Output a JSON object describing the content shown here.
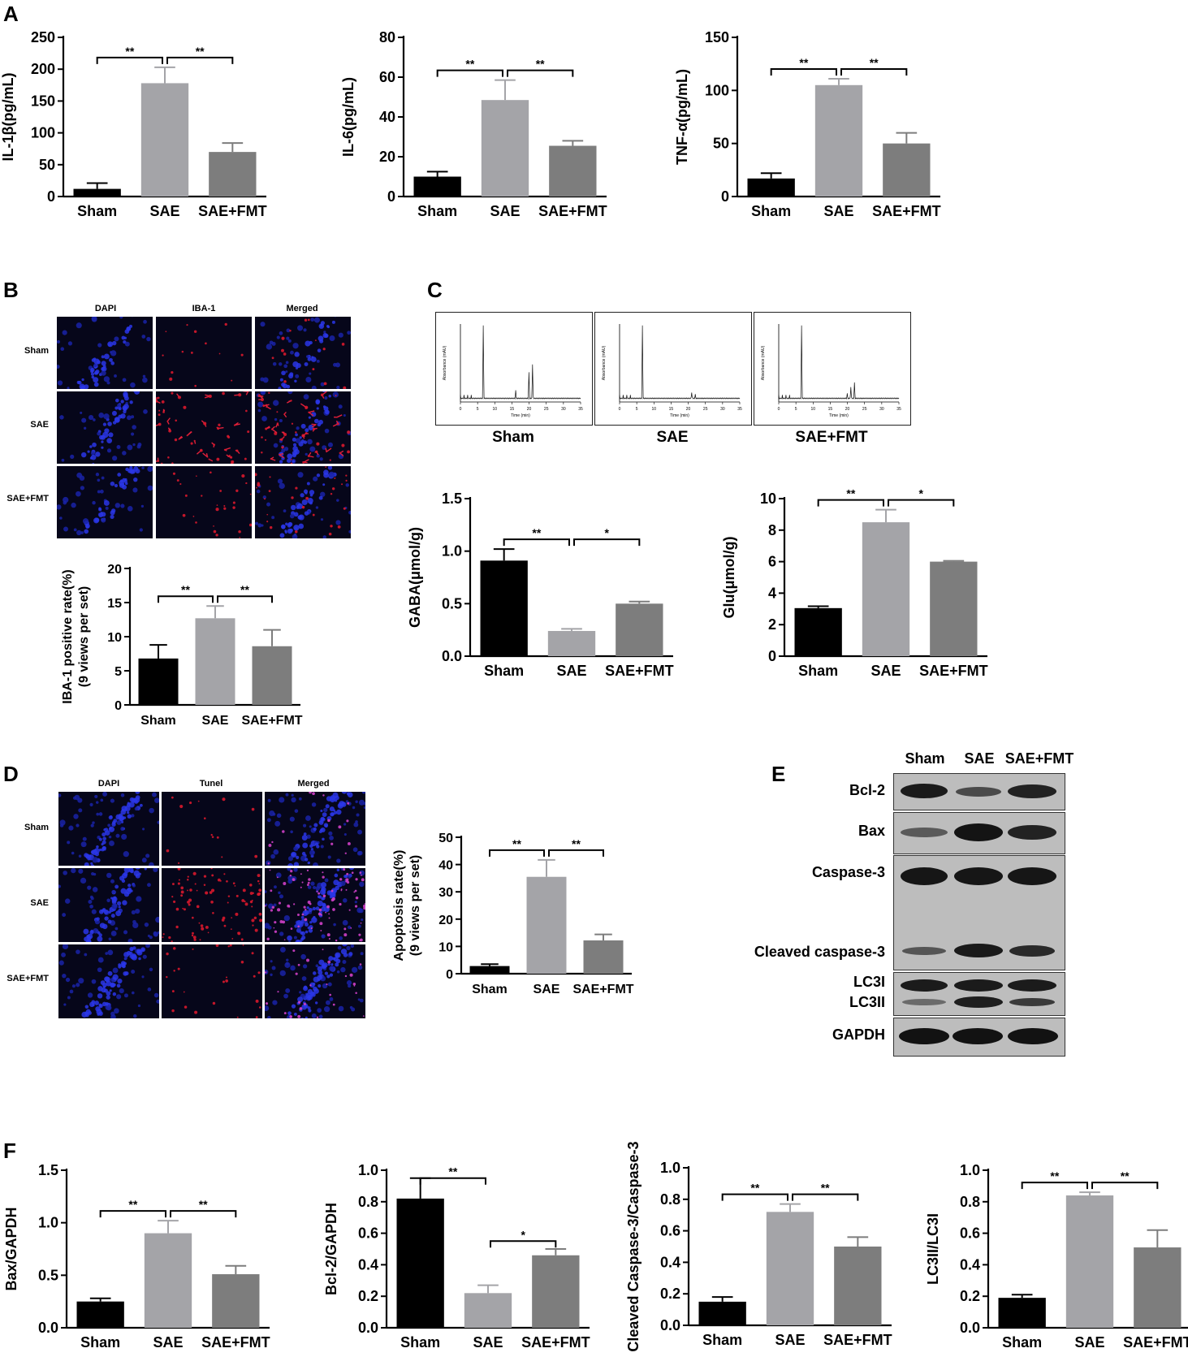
{
  "panels": {
    "A": "A",
    "B": "B",
    "C": "C",
    "D": "D",
    "E": "E",
    "F": "F"
  },
  "colors": {
    "sham": "#000000",
    "sae": "#a4a4a8",
    "fmt": "#7d7d7d"
  },
  "micro_B": {
    "headers": [
      "DAPI",
      "IBA-1",
      "Merged"
    ],
    "rows": [
      "Sham",
      "SAE",
      "SAE+FMT"
    ]
  },
  "micro_D": {
    "headers": [
      "DAPI",
      "Tunel",
      "Merged"
    ],
    "rows": [
      "Sham",
      "SAE",
      "SAE+FMT"
    ]
  },
  "chromatograms": {
    "labels": [
      "Sham",
      "SAE",
      "SAE+FMT"
    ],
    "xlabel": "Time (min)",
    "ylabel": "Absorbance (mAU)"
  },
  "blot": {
    "columns": [
      "Sham",
      "SAE",
      "SAE+FMT"
    ],
    "rows": [
      "Bcl-2",
      "Bax",
      "Caspase-3",
      "Cleaved caspase-3",
      "LC3I",
      "LC3II",
      "GAPDH"
    ]
  },
  "chart_data": [
    {
      "id": "IL1b",
      "type": "bar",
      "categories": [
        "Sham",
        "SAE",
        "SAE+FMT"
      ],
      "values": [
        12,
        178,
        70
      ],
      "errors": [
        9,
        25,
        14
      ],
      "ylabel": "IL-1β(pg/mL)",
      "ylim": [
        0,
        250
      ],
      "yticks": [
        0,
        50,
        100,
        150,
        200,
        250
      ],
      "sig": [
        {
          "from": 0,
          "to": 1,
          "label": "**"
        },
        {
          "from": 1,
          "to": 2,
          "label": "**"
        }
      ]
    },
    {
      "id": "IL6",
      "type": "bar",
      "categories": [
        "Sham",
        "SAE",
        "SAE+FMT"
      ],
      "values": [
        10,
        48.5,
        25.5
      ],
      "errors": [
        2.5,
        10,
        2.5
      ],
      "ylabel": "IL-6(pg/mL)",
      "ylim": [
        0,
        80
      ],
      "yticks": [
        0,
        20,
        40,
        60,
        80
      ],
      "sig": [
        {
          "from": 0,
          "to": 1,
          "label": "**"
        },
        {
          "from": 1,
          "to": 2,
          "label": "**"
        }
      ]
    },
    {
      "id": "TNF",
      "type": "bar",
      "categories": [
        "Sham",
        "SAE",
        "SAE+FMT"
      ],
      "values": [
        17,
        105,
        50
      ],
      "errors": [
        5,
        6,
        10
      ],
      "ylabel": "TNF-α(pg/mL)",
      "ylim": [
        0,
        150
      ],
      "yticks": [
        0,
        50,
        100,
        150
      ],
      "sig": [
        {
          "from": 0,
          "to": 1,
          "label": "**"
        },
        {
          "from": 1,
          "to": 2,
          "label": "**"
        }
      ]
    },
    {
      "id": "IBA1",
      "type": "bar",
      "categories": [
        "Sham",
        "SAE",
        "SAE+FMT"
      ],
      "values": [
        6.8,
        12.7,
        8.6
      ],
      "errors": [
        2,
        1.8,
        2.4
      ],
      "ylabel": "IBA-1 positive rate(%)",
      "ylabel2": "(9 views per set)",
      "ylim": [
        0,
        20
      ],
      "yticks": [
        0,
        5,
        10,
        15,
        20
      ],
      "sig": [
        {
          "from": 0,
          "to": 1,
          "label": "**"
        },
        {
          "from": 1,
          "to": 2,
          "label": "**"
        }
      ]
    },
    {
      "id": "GABA",
      "type": "bar",
      "categories": [
        "Sham",
        "SAE",
        "SAE+FMT"
      ],
      "values": [
        0.91,
        0.24,
        0.5
      ],
      "errors": [
        0.11,
        0.02,
        0.02
      ],
      "ylabel": "GABA(μmol/g)",
      "ylim": [
        0,
        1.5
      ],
      "yticks": [
        0.0,
        0.5,
        1.0,
        1.5
      ],
      "ytickfmt": 1,
      "sig": [
        {
          "from": 0,
          "to": 1,
          "label": "**"
        },
        {
          "from": 1,
          "to": 2,
          "label": "*"
        }
      ]
    },
    {
      "id": "Glu",
      "type": "bar",
      "categories": [
        "Sham",
        "SAE",
        "SAE+FMT"
      ],
      "values": [
        3.05,
        8.5,
        6.0
      ],
      "errors": [
        0.12,
        0.8,
        0.05
      ],
      "ylabel": "Glu(μmol/g)",
      "ylim": [
        0,
        10
      ],
      "yticks": [
        0,
        2,
        4,
        6,
        8,
        10
      ],
      "sig": [
        {
          "from": 0,
          "to": 1,
          "label": "**"
        },
        {
          "from": 1,
          "to": 2,
          "label": "*"
        }
      ]
    },
    {
      "id": "Apop",
      "type": "bar",
      "categories": [
        "Sham",
        "SAE",
        "SAE+FMT"
      ],
      "values": [
        2.8,
        35.5,
        12.2
      ],
      "errors": [
        0.7,
        6.2,
        2.2
      ],
      "ylabel": "Apoptosis rate(%)",
      "ylabel2": "(9 views per set)",
      "ylim": [
        0,
        50
      ],
      "yticks": [
        0,
        10,
        20,
        30,
        40,
        50
      ],
      "sig": [
        {
          "from": 0,
          "to": 1,
          "label": "**"
        },
        {
          "from": 1,
          "to": 2,
          "label": "**"
        }
      ]
    },
    {
      "id": "BaxG",
      "type": "bar",
      "categories": [
        "Sham",
        "SAE",
        "SAE+FMT"
      ],
      "values": [
        0.25,
        0.9,
        0.51
      ],
      "errors": [
        0.03,
        0.12,
        0.08
      ],
      "ylabel": "Bax/GAPDH",
      "ylim": [
        0,
        1.5
      ],
      "yticks": [
        0.0,
        0.5,
        1.0,
        1.5
      ],
      "ytickfmt": 1,
      "sig": [
        {
          "from": 0,
          "to": 1,
          "label": "**"
        },
        {
          "from": 1,
          "to": 2,
          "label": "**"
        }
      ]
    },
    {
      "id": "Bcl2G",
      "type": "bar",
      "categories": [
        "Sham",
        "SAE",
        "SAE+FMT"
      ],
      "values": [
        0.82,
        0.22,
        0.46
      ],
      "errors": [
        0.13,
        0.05,
        0.04
      ],
      "ylabel": "Bcl-2/GAPDH",
      "ylim": [
        0,
        1.0
      ],
      "yticks": [
        0.0,
        0.2,
        0.4,
        0.6,
        0.8,
        1.0
      ],
      "ytickfmt": 1,
      "sig": [
        {
          "from": 0,
          "to": 1,
          "label": "**",
          "y": 0.95
        },
        {
          "from": 1,
          "to": 2,
          "label": "*",
          "y": 0.55
        }
      ]
    },
    {
      "id": "CleavedC3",
      "type": "bar",
      "categories": [
        "Sham",
        "SAE",
        "SAE+FMT"
      ],
      "values": [
        0.15,
        0.72,
        0.5
      ],
      "errors": [
        0.03,
        0.05,
        0.06
      ],
      "ylabel": "Cleaved Caspase-3/Caspase-3",
      "ylim": [
        0,
        1.0
      ],
      "yticks": [
        0.0,
        0.2,
        0.4,
        0.6,
        0.8,
        1.0
      ],
      "ytickfmt": 1,
      "sig": [
        {
          "from": 0,
          "to": 1,
          "label": "**"
        },
        {
          "from": 1,
          "to": 2,
          "label": "**"
        }
      ]
    },
    {
      "id": "LC3",
      "type": "bar",
      "categories": [
        "Sham",
        "SAE",
        "SAE+FMT"
      ],
      "values": [
        0.19,
        0.84,
        0.51
      ],
      "errors": [
        0.02,
        0.02,
        0.11
      ],
      "ylabel": "LC3II/LC3I",
      "ylim": [
        0,
        1.0
      ],
      "yticks": [
        0.0,
        0.2,
        0.4,
        0.6,
        0.8,
        1.0
      ],
      "ytickfmt": 1,
      "sig": [
        {
          "from": 0,
          "to": 1,
          "label": "**"
        },
        {
          "from": 1,
          "to": 2,
          "label": "**"
        }
      ]
    }
  ]
}
